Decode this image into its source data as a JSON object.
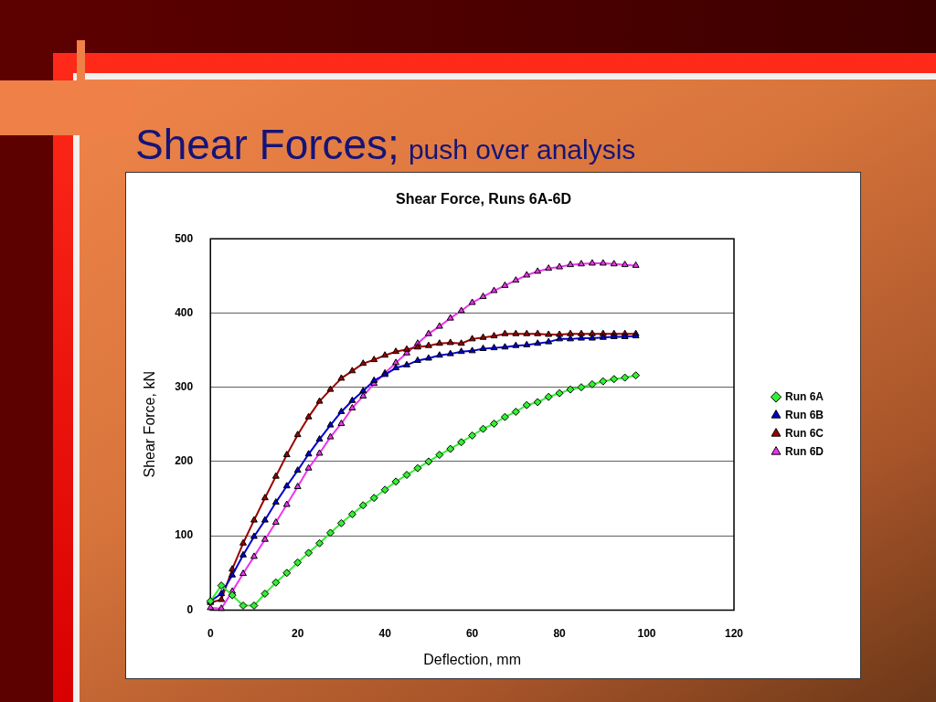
{
  "chart_data": {
    "type": "line",
    "title": "Shear Forces;",
    "subtitle": "push over analysis",
    "annotations": [
      "Shear Force, Runs 6A-6D"
    ],
    "xlabel": "Deflection, mm",
    "ylabel": "Shear Force, kN",
    "x": [
      0,
      2.5,
      5,
      7.5,
      10,
      12.5,
      15,
      17.5,
      20,
      22.5,
      25,
      27.5,
      30,
      32.5,
      35,
      37.5,
      40,
      42.5,
      45,
      47.5,
      50,
      52.5,
      55,
      57.5,
      60,
      62.5,
      65,
      67.5,
      70,
      72.5,
      75,
      77.5,
      80,
      82.5,
      85,
      87.5,
      90,
      92.5,
      95,
      97.5
    ],
    "series": [
      {
        "name": "Run 6A",
        "color": "#33ee33",
        "marker": "diamond",
        "values": [
          12,
          33,
          20,
          6,
          6,
          22,
          37,
          50,
          64,
          77,
          90,
          104,
          117,
          129,
          141,
          151,
          162,
          173,
          182,
          191,
          200,
          209,
          217,
          226,
          235,
          244,
          251,
          260,
          267,
          276,
          280,
          287,
          292,
          297,
          300,
          304,
          308,
          311,
          313,
          316
        ]
      },
      {
        "name": "Run 6B",
        "color": "#0000cc",
        "marker": "triangle",
        "values": [
          12,
          22,
          47,
          74,
          99,
          121,
          145,
          167,
          188,
          210,
          230,
          249,
          267,
          282,
          295,
          309,
          317,
          326,
          330,
          336,
          339,
          343,
          345,
          348,
          349,
          352,
          353,
          354,
          356,
          357,
          359,
          361,
          365,
          365,
          366,
          366,
          367,
          368,
          368,
          369
        ]
      },
      {
        "name": "Run 6C",
        "color": "#990000",
        "marker": "triangle",
        "values": [
          10,
          14,
          55,
          90,
          121,
          151,
          180,
          209,
          236,
          260,
          281,
          297,
          312,
          322,
          332,
          337,
          343,
          348,
          351,
          354,
          356,
          359,
          360,
          359,
          365,
          367,
          369,
          372,
          372,
          372,
          372,
          371,
          371,
          372,
          372,
          372,
          372,
          372,
          372,
          372
        ]
      },
      {
        "name": "Run 6D",
        "color": "#ee33ee",
        "marker": "triangle",
        "values": [
          3,
          2,
          25,
          49,
          72,
          95,
          118,
          142,
          166,
          191,
          211,
          233,
          251,
          272,
          288,
          305,
          319,
          333,
          346,
          359,
          372,
          382,
          393,
          403,
          414,
          422,
          430,
          437,
          444,
          451,
          456,
          460,
          462,
          465,
          466,
          467,
          467,
          466,
          465,
          464
        ]
      }
    ],
    "xlim": [
      0,
      120
    ],
    "xticks": [
      0,
      20,
      40,
      60,
      80,
      100,
      120
    ],
    "ylim": [
      0,
      500
    ],
    "yticks": [
      0,
      100,
      200,
      300,
      400,
      500
    ],
    "grid": "y",
    "legend": "right",
    "line_style": "solid"
  }
}
